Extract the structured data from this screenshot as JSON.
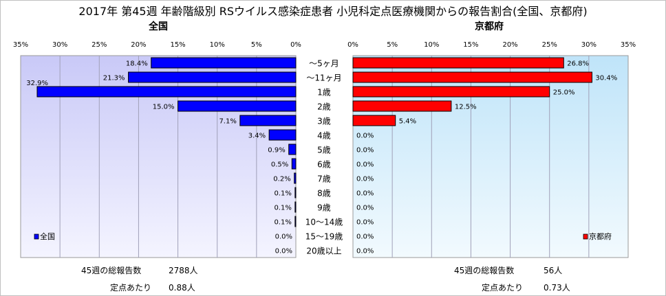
{
  "title": "2017年 第45週 年齢階級別 RSウイルス感染症患者 小児科定点医療機関からの報告割合(全国、京都府)",
  "chart_data": [
    {
      "type": "bar",
      "orientation": "horizontal",
      "direction": "right-to-left",
      "subtitle": "全国",
      "legend": "全国",
      "legend_position": "bottom-left",
      "color": "#0000ff",
      "xlim": [
        0,
        35
      ],
      "ticks": [
        "35%",
        "30%",
        "25%",
        "20%",
        "15%",
        "10%",
        "5%",
        "0%"
      ],
      "categories": [
        "～5ヶ月",
        "～11ヶ月",
        "1歳",
        "2歳",
        "3歳",
        "4歳",
        "5歳",
        "6歳",
        "7歳",
        "8歳",
        "9歳",
        "10～14歳",
        "15～19歳",
        "20歳以上"
      ],
      "values": [
        18.4,
        21.3,
        32.9,
        15.0,
        7.1,
        3.4,
        0.9,
        0.5,
        0.2,
        0.1,
        0.1,
        0.1,
        0.0,
        0.0
      ],
      "labels": [
        "18.4%",
        "21.3%",
        "32.9%",
        "15.0%",
        "7.1%",
        "3.4%",
        "0.9%",
        "0.5%",
        "0.2%",
        "0.1%",
        "0.1%",
        "0.1%",
        "0.0%",
        "0.0%"
      ],
      "grid": true
    },
    {
      "type": "bar",
      "orientation": "horizontal",
      "direction": "left-to-right",
      "subtitle": "京都府",
      "legend": "京都府",
      "legend_position": "bottom-right",
      "color": "#ff0000",
      "xlim": [
        0,
        35
      ],
      "ticks": [
        "0%",
        "5%",
        "10%",
        "15%",
        "20%",
        "25%",
        "30%",
        "35%"
      ],
      "categories": [
        "～5ヶ月",
        "～11ヶ月",
        "1歳",
        "2歳",
        "3歳",
        "4歳",
        "5歳",
        "6歳",
        "7歳",
        "8歳",
        "9歳",
        "10～14歳",
        "15～19歳",
        "20歳以上"
      ],
      "values": [
        26.8,
        30.4,
        25.0,
        12.5,
        5.4,
        0.0,
        0.0,
        0.0,
        0.0,
        0.0,
        0.0,
        0.0,
        0.0,
        0.0
      ],
      "labels": [
        "26.8%",
        "30.4%",
        "25.0%",
        "12.5%",
        "5.4%",
        "0.0%",
        "0.0%",
        "0.0%",
        "0.0%",
        "0.0%",
        "0.0%",
        "0.0%",
        "0.0%",
        "0.0%"
      ],
      "grid": true
    }
  ],
  "footer": {
    "left": {
      "total_label": "45週の総報告数",
      "total_value": "2788人",
      "per_label": "定点あたり",
      "per_value": "0.88人"
    },
    "right": {
      "total_label": "45週の総報告数",
      "total_value": "56人",
      "per_label": "定点あたり",
      "per_value": "0.73人"
    }
  }
}
